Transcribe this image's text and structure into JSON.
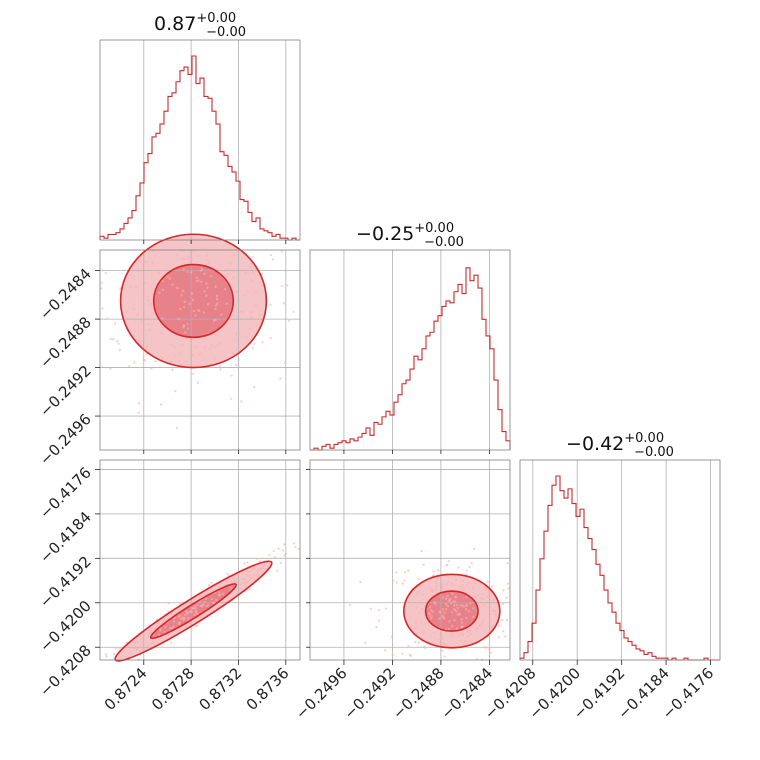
{
  "chart_data": {
    "type": "corner",
    "titles": [
      {
        "value": "0.87",
        "plus": "+0.00",
        "minus": "−0.00"
      },
      {
        "value": "−0.25",
        "plus": "+0.00",
        "minus": "−0.00"
      },
      {
        "value": "−0.42",
        "plus": "+0.00",
        "minus": "−0.00"
      }
    ],
    "params": [
      {
        "range": [
          0.87203,
          0.87372
        ],
        "ticks": [
          0.8724,
          0.8728,
          0.8732,
          0.8736
        ],
        "ticklabels": [
          "0.8724",
          "0.8728",
          "0.8732",
          "0.8736"
        ]
      },
      {
        "range": [
          -0.24988,
          -0.24823
        ],
        "ticks": [
          -0.2496,
          -0.2492,
          -0.2488,
          -0.2484
        ],
        "ticklabels": [
          "−0.2496",
          "−0.2492",
          "−0.2488",
          "−0.2484"
        ]
      },
      {
        "range": [
          -0.42103,
          -0.41743
        ],
        "ticks": [
          -0.4208,
          -0.42,
          -0.4192,
          -0.4184,
          -0.4176
        ],
        "ticklabels": [
          "−0.4208",
          "−0.4200",
          "−0.4192",
          "−0.4184",
          "−0.4176"
        ]
      }
    ],
    "histograms": [
      {
        "counts": [
          0.02,
          0.01,
          0.03,
          0.03,
          0.04,
          0.06,
          0.09,
          0.12,
          0.16,
          0.24,
          0.31,
          0.42,
          0.47,
          0.56,
          0.58,
          0.63,
          0.7,
          0.78,
          0.8,
          0.86,
          0.92,
          0.94,
          0.9,
          1.0,
          0.85,
          0.88,
          0.78,
          0.77,
          0.7,
          0.63,
          0.48,
          0.46,
          0.4,
          0.37,
          0.32,
          0.22,
          0.21,
          0.15,
          0.1,
          0.12,
          0.06,
          0.05,
          0.04,
          0.02,
          0.03,
          0.01,
          0.01,
          0.0,
          0.01,
          0.0
        ]
      },
      {
        "counts": [
          0.0,
          0.01,
          0.0,
          0.02,
          0.03,
          0.01,
          0.03,
          0.04,
          0.05,
          0.04,
          0.06,
          0.05,
          0.07,
          0.09,
          0.12,
          0.08,
          0.15,
          0.14,
          0.18,
          0.21,
          0.19,
          0.26,
          0.3,
          0.36,
          0.38,
          0.44,
          0.51,
          0.49,
          0.55,
          0.62,
          0.64,
          0.7,
          0.73,
          0.78,
          0.81,
          0.8,
          0.86,
          0.9,
          0.85,
          0.99,
          0.92,
          0.95,
          0.88,
          0.71,
          0.62,
          0.55,
          0.38,
          0.22,
          0.1,
          0.05
        ]
      },
      {
        "counts": [
          0.01,
          0.04,
          0.1,
          0.2,
          0.38,
          0.55,
          0.7,
          0.84,
          0.95,
          1.0,
          0.92,
          0.88,
          0.93,
          0.85,
          0.78,
          0.82,
          0.72,
          0.66,
          0.6,
          0.52,
          0.46,
          0.38,
          0.31,
          0.26,
          0.2,
          0.16,
          0.12,
          0.1,
          0.08,
          0.06,
          0.05,
          0.03,
          0.04,
          0.02,
          0.01,
          0.01,
          0.01,
          0.0,
          0.01,
          0.0,
          0.0,
          0.01,
          0.0,
          0.0,
          0.0,
          0.0,
          0.01,
          0.0,
          0.0,
          0.0
        ]
      }
    ],
    "pairs": [
      {
        "x": 0,
        "y": 1,
        "center": [
          0.87282,
          -0.24865
        ],
        "spread": [
          0.00028,
          0.00025
        ],
        "rho": 0.0
      },
      {
        "x": 0,
        "y": 2,
        "center": [
          0.87282,
          -0.42015
        ],
        "spread": [
          0.0003,
          0.0004
        ],
        "rho": 0.98
      },
      {
        "x": 1,
        "y": 2,
        "center": [
          -0.24871,
          -0.42015
        ],
        "spread": [
          0.00018,
          0.0003
        ],
        "rho": 0.0
      }
    ],
    "grid": true,
    "color": "#d62728"
  }
}
